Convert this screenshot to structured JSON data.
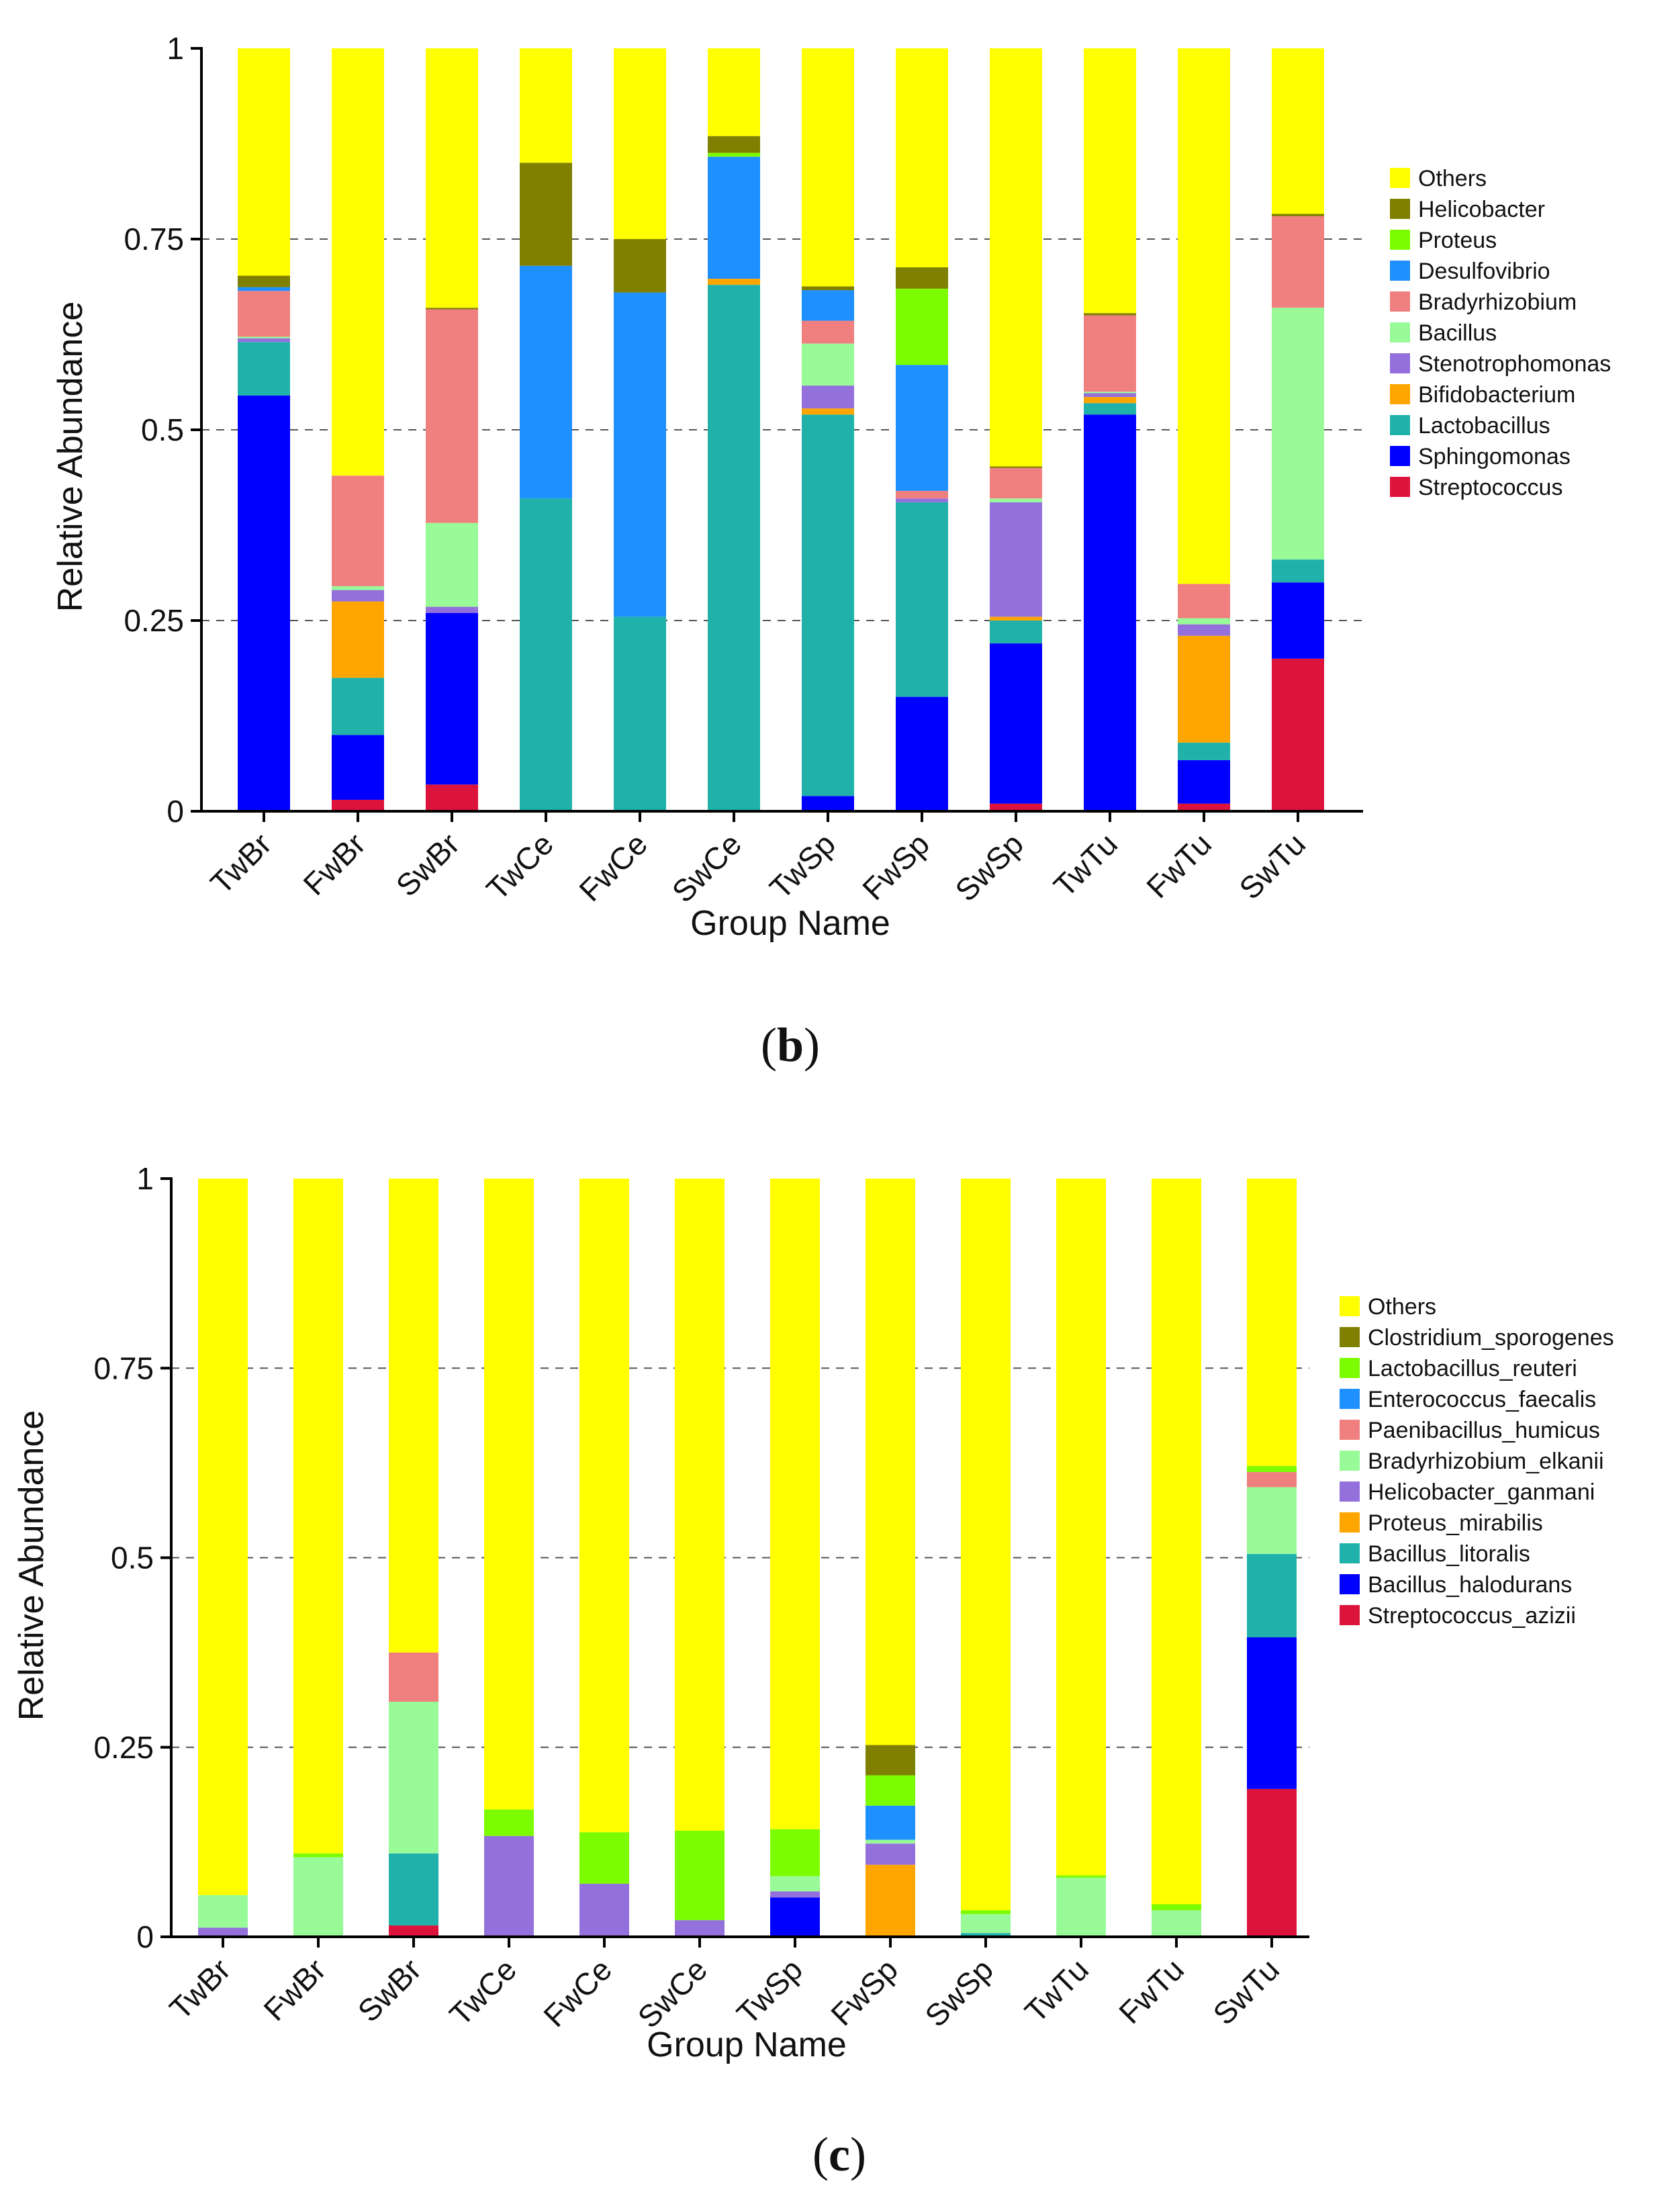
{
  "figure": {
    "panels": [
      {
        "label": "(b)",
        "label_parts": [
          "(",
          "b",
          ")"
        ]
      },
      {
        "label": "(c)",
        "label_parts": [
          "(",
          "c",
          ")"
        ]
      }
    ]
  },
  "chart_data": [
    {
      "type": "bar",
      "stacked": true,
      "panel": "(b)",
      "xlabel": "Group Name",
      "ylabel": "Relative Abundance",
      "ylim": [
        0,
        1
      ],
      "yticks": [
        0,
        0.25,
        0.5,
        0.75,
        1
      ],
      "ytick_labels": [
        "0",
        "0.25",
        "0.5",
        "0.75",
        "1"
      ],
      "grid": "dashed horizontal at 0.25, 0.5, 0.75",
      "legend_position": "right",
      "categories": [
        "TwBr",
        "FwBr",
        "SwBr",
        "TwCe",
        "FwCe",
        "SwCe",
        "TwSp",
        "FwSp",
        "SwSp",
        "TwTu",
        "FwTu",
        "SwTu"
      ],
      "series": [
        {
          "name": "Streptococcus",
          "color": "#dc143c",
          "values": [
            0,
            0.015,
            0.035,
            0,
            0,
            0,
            0,
            0,
            0.01,
            0,
            0.01,
            0.2
          ]
        },
        {
          "name": "Sphingomonas",
          "color": "#0000ff",
          "values": [
            0.545,
            0.085,
            0.225,
            0,
            0,
            0,
            0.02,
            0.15,
            0.21,
            0.52,
            0.057,
            0.1
          ]
        },
        {
          "name": "Lactobacillus",
          "color": "#20b2aa",
          "values": [
            0.07,
            0.075,
            0,
            0.41,
            0.255,
            0.69,
            0.5,
            0.255,
            0.03,
            0.015,
            0.023,
            0.03
          ]
        },
        {
          "name": "Bifidobacterium",
          "color": "#ffa500",
          "values": [
            0,
            0.1,
            0,
            0,
            0,
            0.008,
            0.008,
            0,
            0.005,
            0.008,
            0.14,
            0
          ]
        },
        {
          "name": "Stenotrophomonas",
          "color": "#9370db",
          "values": [
            0.005,
            0.015,
            0.008,
            0,
            0,
            0,
            0.03,
            0.005,
            0.15,
            0.005,
            0.015,
            0
          ]
        },
        {
          "name": "Bacillus",
          "color": "#98fb98",
          "values": [
            0.002,
            0.005,
            0.11,
            0,
            0,
            0,
            0.055,
            0,
            0.005,
            0.002,
            0.008,
            0.33
          ]
        },
        {
          "name": "Bradyrhizobium",
          "color": "#f08080",
          "values": [
            0.06,
            0.145,
            0.28,
            0,
            0,
            0,
            0.03,
            0.01,
            0.04,
            0.1,
            0.045,
            0.12
          ]
        },
        {
          "name": "Desulfovibrio",
          "color": "#1e90ff",
          "values": [
            0.005,
            0,
            0,
            0.305,
            0.425,
            0.16,
            0.04,
            0.165,
            0,
            0,
            0,
            0
          ]
        },
        {
          "name": "Proteus",
          "color": "#7cfc00",
          "values": [
            0,
            0,
            0,
            0,
            0,
            0.005,
            0,
            0.1,
            0,
            0,
            0,
            0
          ]
        },
        {
          "name": "Helicobacter",
          "color": "#808000",
          "values": [
            0.015,
            0,
            0.002,
            0.135,
            0.07,
            0.022,
            0.005,
            0.028,
            0.002,
            0.003,
            0,
            0.003
          ]
        },
        {
          "name": "Others",
          "color": "#ffff00",
          "values": [
            0.298,
            0.56,
            0.34,
            0.15,
            0.25,
            0.115,
            0.312,
            0.287,
            0.548,
            0.347,
            0.702,
            0.217
          ]
        }
      ],
      "legend_order": [
        "Others",
        "Helicobacter",
        "Proteus",
        "Desulfovibrio",
        "Bradyrhizobium",
        "Bacillus",
        "Stenotrophomonas",
        "Bifidobacterium",
        "Lactobacillus",
        "Sphingomonas",
        "Streptococcus"
      ]
    },
    {
      "type": "bar",
      "stacked": true,
      "panel": "(c)",
      "xlabel": "Group Name",
      "ylabel": "Relative Abundance",
      "ylim": [
        0,
        1
      ],
      "yticks": [
        0,
        0.25,
        0.5,
        0.75,
        1
      ],
      "ytick_labels": [
        "0",
        "0.25",
        "0.5",
        "0.75",
        "1"
      ],
      "grid": "dashed horizontal at 0.25, 0.5, 0.75",
      "legend_position": "right",
      "categories": [
        "TwBr",
        "FwBr",
        "SwBr",
        "TwCe",
        "FwCe",
        "SwCe",
        "TwSp",
        "FwSp",
        "SwSp",
        "TwTu",
        "FwTu",
        "SwTu"
      ],
      "series": [
        {
          "name": "Streptococcus_azizii",
          "color": "#dc143c",
          "values": [
            0,
            0,
            0.015,
            0,
            0,
            0,
            0,
            0,
            0,
            0,
            0,
            0.195
          ]
        },
        {
          "name": "Bacillus_halodurans",
          "color": "#0000ff",
          "values": [
            0,
            0,
            0,
            0,
            0,
            0,
            0.052,
            0,
            0,
            0,
            0,
            0.2
          ]
        },
        {
          "name": "Bacillus_litoralis",
          "color": "#20b2aa",
          "values": [
            0,
            0,
            0.095,
            0,
            0,
            0,
            0,
            0,
            0.005,
            0,
            0,
            0.11
          ]
        },
        {
          "name": "Proteus_mirabilis",
          "color": "#ffa500",
          "values": [
            0,
            0,
            0,
            0,
            0,
            0,
            0,
            0.095,
            0,
            0,
            0,
            0
          ]
        },
        {
          "name": "Helicobacter_ganmani",
          "color": "#9370db",
          "values": [
            0.012,
            0,
            0,
            0.133,
            0.07,
            0.022,
            0.008,
            0.028,
            0,
            0,
            0,
            0
          ]
        },
        {
          "name": "Bradyrhizobium_elkanii",
          "color": "#98fb98",
          "values": [
            0.043,
            0.105,
            0.2,
            0,
            0,
            0,
            0.02,
            0.005,
            0.025,
            0.078,
            0.035,
            0.088
          ]
        },
        {
          "name": "Paenibacillus_humicus",
          "color": "#f08080",
          "values": [
            0,
            0,
            0.065,
            0,
            0,
            0,
            0,
            0,
            0,
            0,
            0,
            0.02
          ]
        },
        {
          "name": "Enterococcus_faecalis",
          "color": "#1e90ff",
          "values": [
            0,
            0,
            0,
            0,
            0,
            0,
            0,
            0.045,
            0,
            0,
            0,
            0
          ]
        },
        {
          "name": "Lactobacillus_reuteri",
          "color": "#7cfc00",
          "values": [
            0,
            0.005,
            0,
            0.035,
            0.068,
            0.118,
            0.062,
            0.04,
            0.005,
            0.003,
            0.008,
            0.008
          ]
        },
        {
          "name": "Clostridium_sporogenes",
          "color": "#808000",
          "values": [
            0,
            0,
            0,
            0,
            0,
            0,
            0,
            0.04,
            0,
            0,
            0,
            0
          ]
        },
        {
          "name": "Others",
          "color": "#ffff00",
          "values": [
            0.945,
            0.89,
            0.625,
            0.832,
            0.862,
            0.86,
            0.858,
            0.747,
            0.965,
            0.919,
            0.957,
            0.379
          ]
        }
      ],
      "legend_order": [
        "Others",
        "Clostridium_sporogenes",
        "Lactobacillus_reuteri",
        "Enterococcus_faecalis",
        "Paenibacillus_humicus",
        "Bradyrhizobium_elkanii",
        "Helicobacter_ganmani",
        "Proteus_mirabilis",
        "Bacillus_litoralis",
        "Bacillus_halodurans",
        "Streptococcus_azizii"
      ]
    }
  ]
}
